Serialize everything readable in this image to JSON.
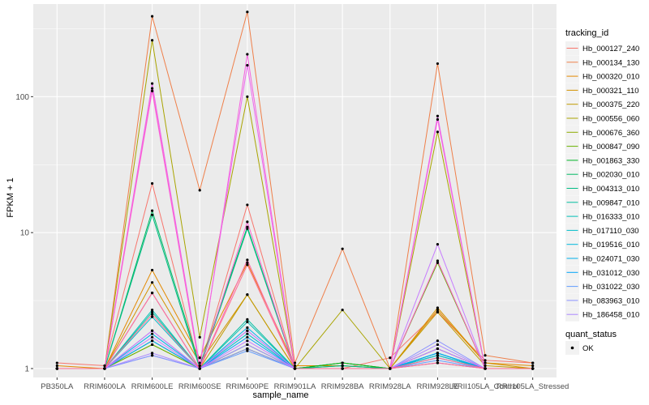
{
  "chart_data": {
    "type": "line",
    "xlabel": "sample_name",
    "ylabel": "FPKM + 1",
    "y_scale": "log10",
    "ylim": [
      0.86,
      480
    ],
    "y_ticks": [
      {
        "value": 1,
        "label": "1"
      },
      {
        "value": 10,
        "label": "10"
      },
      {
        "value": 100,
        "label": "100"
      }
    ],
    "grid": true,
    "background": "#ebebeb",
    "legend_position": "right",
    "categories": [
      "PB350LA",
      "RRIM600LA",
      "RRIM600LE",
      "RRIM600SE",
      "RRIM600PE",
      "RRIM901LA",
      "RRIM928BA",
      "RRIM928LA",
      "RRIM928LE",
      "RRII105LA_Control",
      "RRII105LA_Stressed"
    ],
    "legend_title": "tracking_id",
    "series": [
      {
        "name": "Hb_000127_240",
        "color": "#F8766D",
        "values": [
          1.1,
          1.05,
          23,
          1.0,
          16,
          1.0,
          1.0,
          1.2,
          2.6,
          1.15,
          1.1
        ]
      },
      {
        "name": "Hb_000134_130",
        "color": "#EF7F49",
        "values": [
          1.0,
          1.0,
          390,
          20.5,
          420,
          1.1,
          7.6,
          1.0,
          175,
          1.25,
          1.1
        ]
      },
      {
        "name": "Hb_000320_010",
        "color": "#E38900",
        "values": [
          1.05,
          1.0,
          5.3,
          1.2,
          6.0,
          1.05,
          1.05,
          1.0,
          2.7,
          1.1,
          1.05
        ]
      },
      {
        "name": "Hb_000321_110",
        "color": "#D39200",
        "values": [
          1.0,
          1.0,
          4.3,
          1.1,
          3.5,
          1.0,
          1.0,
          1.0,
          2.8,
          1.1,
          1.0
        ]
      },
      {
        "name": "Hb_000375_220",
        "color": "#C09B00",
        "values": [
          1.0,
          1.0,
          3.6,
          1.0,
          3.5,
          1.0,
          1.0,
          1.0,
          2.6,
          1.05,
          1.0
        ]
      },
      {
        "name": "Hb_000556_060",
        "color": "#A9A400",
        "values": [
          1.0,
          1.0,
          260,
          1.7,
          100,
          1.0,
          2.7,
          1.0,
          55,
          1.0,
          1.0
        ]
      },
      {
        "name": "Hb_000676_360",
        "color": "#8DAB00",
        "values": [
          1.0,
          1.0,
          1.5,
          1.0,
          1.4,
          1.0,
          1.1,
          1.0,
          1.1,
          1.0,
          1.0
        ]
      },
      {
        "name": "Hb_000847_090",
        "color": "#67B100",
        "values": [
          1.0,
          1.0,
          1.5,
          1.0,
          1.4,
          1.0,
          1.1,
          1.0,
          6.0,
          1.0,
          1.0
        ]
      },
      {
        "name": "Hb_001863_330",
        "color": "#00B526",
        "values": [
          1.0,
          1.0,
          1.6,
          1.0,
          1.5,
          1.0,
          1.1,
          1.0,
          1.25,
          1.0,
          1.0
        ]
      },
      {
        "name": "Hb_002030_010",
        "color": "#00B962",
        "values": [
          1.0,
          1.0,
          14.5,
          1.05,
          11.0,
          1.0,
          1.05,
          1.0,
          1.3,
          1.0,
          1.0
        ]
      },
      {
        "name": "Hb_004313_010",
        "color": "#00BC84",
        "values": [
          1.0,
          1.0,
          13.5,
          1.0,
          10.7,
          1.0,
          1.05,
          1.0,
          1.4,
          1.0,
          1.0
        ]
      },
      {
        "name": "Hb_009847_010",
        "color": "#00BE9E",
        "values": [
          1.0,
          1.0,
          2.6,
          1.0,
          2.3,
          1.0,
          1.0,
          1.0,
          1.4,
          1.0,
          1.0
        ]
      },
      {
        "name": "Hb_016333_010",
        "color": "#00BFB5",
        "values": [
          1.0,
          1.0,
          2.7,
          1.0,
          2.2,
          1.0,
          1.0,
          1.0,
          1.3,
          1.0,
          1.0
        ]
      },
      {
        "name": "Hb_017110_030",
        "color": "#00BDCA",
        "values": [
          1.0,
          1.0,
          2.4,
          1.0,
          1.8,
          1.0,
          1.0,
          1.0,
          1.3,
          1.0,
          1.0
        ]
      },
      {
        "name": "Hb_019516_010",
        "color": "#00B8DC",
        "values": [
          1.0,
          1.0,
          1.9,
          1.0,
          1.9,
          1.0,
          1.0,
          1.0,
          1.25,
          1.0,
          1.0
        ]
      },
      {
        "name": "Hb_024071_030",
        "color": "#00B0EB",
        "values": [
          1.0,
          1.0,
          1.8,
          1.0,
          2.0,
          1.0,
          1.0,
          1.0,
          1.2,
          1.0,
          1.0
        ]
      },
      {
        "name": "Hb_031012_030",
        "color": "#00A5F8",
        "values": [
          1.0,
          1.0,
          1.6,
          1.0,
          1.7,
          1.0,
          1.0,
          1.0,
          1.3,
          1.0,
          1.0
        ]
      },
      {
        "name": "Hb_031022_030",
        "color": "#619CFF",
        "values": [
          1.0,
          1.0,
          1.25,
          1.0,
          1.35,
          1.0,
          1.0,
          1.0,
          1.15,
          1.0,
          1.0
        ]
      },
      {
        "name": "Hb_083963_010",
        "color": "#8C93FF",
        "values": [
          1.0,
          1.0,
          1.25,
          1.0,
          1.4,
          1.0,
          1.0,
          1.0,
          1.6,
          1.0,
          1.0
        ]
      },
      {
        "name": "Hb_186458_010",
        "color": "#AB89FF",
        "values": [
          1.0,
          1.0,
          1.3,
          1.0,
          1.5,
          1.0,
          1.0,
          1.0,
          1.5,
          1.0,
          1.0
        ]
      },
      {
        "name": "",
        "color": "#C77CFF",
        "values": [
          1.0,
          1.0,
          1.7,
          1.0,
          1.6,
          1.0,
          1.0,
          1.0,
          8.2,
          1.0,
          1.0
        ]
      },
      {
        "name": "",
        "color": "#DD71FA",
        "values": [
          1.0,
          1.0,
          1.9,
          1.0,
          1.9,
          1.0,
          1.0,
          1.0,
          1.4,
          1.0,
          1.0
        ]
      },
      {
        "name": "",
        "color": "#EC69EF",
        "values": [
          1.0,
          1.0,
          125,
          1.05,
          170,
          1.0,
          1.0,
          1.0,
          72,
          1.0,
          1.0
        ]
      },
      {
        "name": "",
        "color": "#F663DF",
        "values": [
          1.0,
          1.0,
          110,
          1.0,
          205,
          1.0,
          1.0,
          1.0,
          68,
          1.0,
          1.0
        ]
      },
      {
        "name": "",
        "color": "#FD61D1",
        "values": [
          1.0,
          1.0,
          115,
          1.0,
          12.0,
          1.0,
          1.0,
          1.0,
          6.2,
          1.0,
          1.0
        ]
      },
      {
        "name": "",
        "color": "#FF64B0",
        "values": [
          1.0,
          1.0,
          3.6,
          1.0,
          6.3,
          1.0,
          1.0,
          1.0,
          1.1,
          1.0,
          1.0
        ]
      },
      {
        "name": "",
        "color": "#FF6C91",
        "values": [
          1.0,
          1.0,
          2.5,
          1.0,
          5.8,
          1.0,
          1.0,
          1.0,
          1.2,
          1.0,
          1.0
        ]
      }
    ],
    "quant_legend": {
      "title": "quant_status",
      "entries": [
        {
          "label": "OK"
        }
      ]
    }
  }
}
